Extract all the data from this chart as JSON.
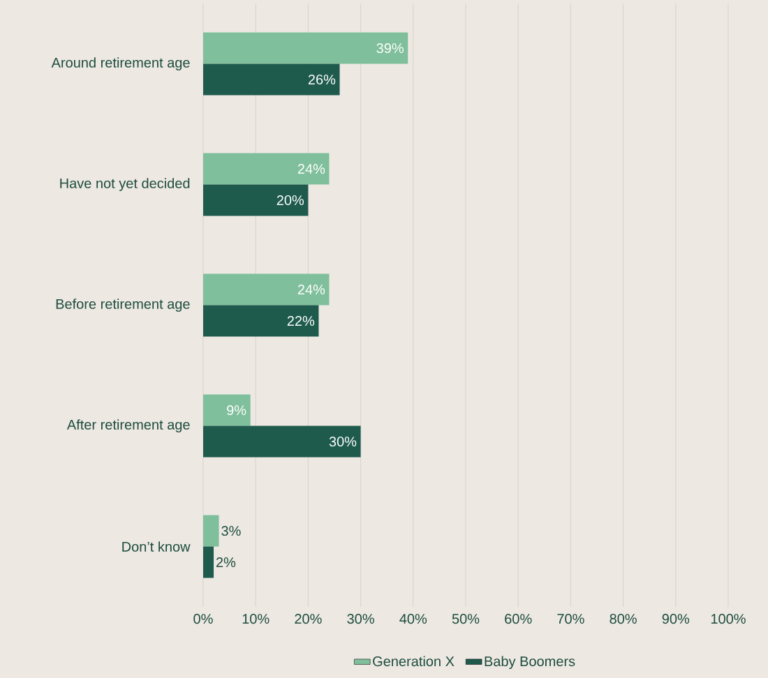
{
  "chart_data": {
    "type": "bar",
    "orientation": "horizontal",
    "categories": [
      "Around retirement age",
      "Have not yet decided",
      "Before retirement age",
      "After retirement age",
      "Don’t know"
    ],
    "series": [
      {
        "name": "Generation X",
        "color": "#7fbf9b",
        "values": [
          39,
          24,
          24,
          9,
          3
        ],
        "value_labels": [
          "39%",
          "24%",
          "24%",
          "9%",
          "3%"
        ]
      },
      {
        "name": "Baby Boomers",
        "color": "#1e5b4d",
        "values": [
          26,
          20,
          22,
          30,
          2
        ],
        "value_labels": [
          "26%",
          "20%",
          "22%",
          "30%",
          "2%"
        ]
      }
    ],
    "xlim": [
      0,
      100
    ],
    "xticks": [
      {
        "value": 0,
        "label": "0%"
      },
      {
        "value": 10,
        "label": "10%"
      },
      {
        "value": 20,
        "label": "20%"
      },
      {
        "value": 30,
        "label": "30%"
      },
      {
        "value": 40,
        "label": "40%"
      },
      {
        "value": 50,
        "label": "50%"
      },
      {
        "value": 60,
        "label": "60%"
      },
      {
        "value": 70,
        "label": "70%"
      },
      {
        "value": 80,
        "label": "80%"
      },
      {
        "value": 90,
        "label": "90%"
      },
      {
        "value": 100,
        "label": "100%"
      }
    ],
    "grid": "x",
    "legend": "bottom"
  }
}
